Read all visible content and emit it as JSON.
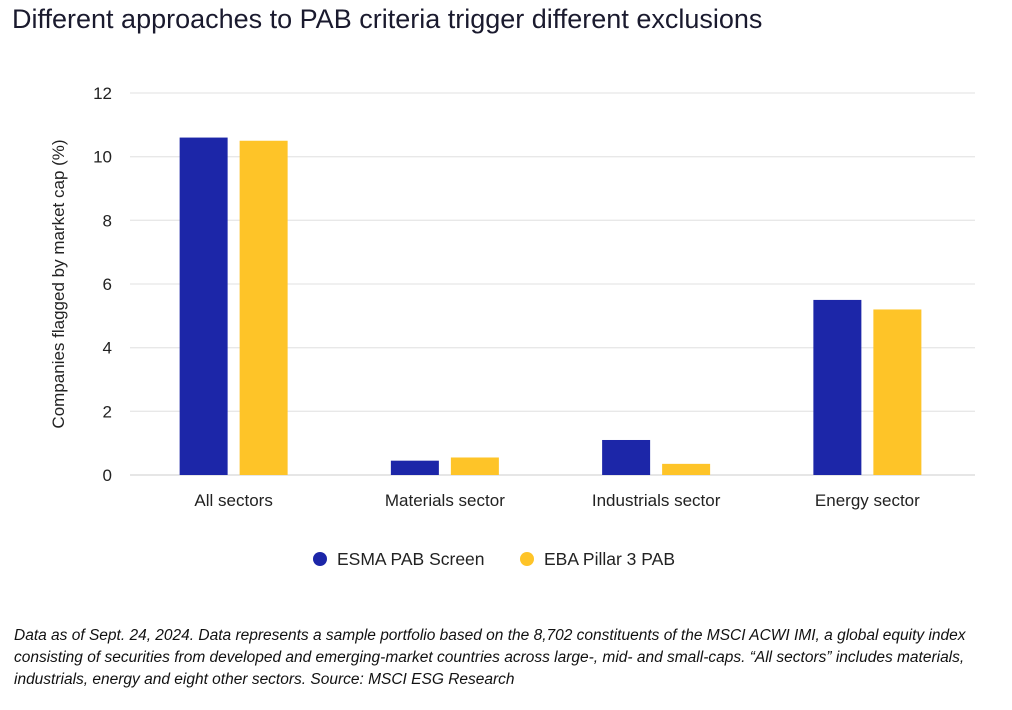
{
  "title": "Different approaches to PAB criteria trigger different exclusions",
  "chart_data": {
    "type": "bar",
    "title": "Different approaches to PAB criteria trigger different exclusions",
    "xlabel": "",
    "ylabel": "Companies flagged by market cap (%)",
    "ylim": [
      0,
      12
    ],
    "yticks": [
      0,
      2,
      4,
      6,
      8,
      10,
      12
    ],
    "grid": true,
    "legend_position": "bottom",
    "categories": [
      "All sectors",
      "Materials sector",
      "Industrials sector",
      "Energy sector"
    ],
    "series": [
      {
        "name": "ESMA PAB Screen",
        "color": "#1c26a8",
        "values": [
          10.6,
          0.45,
          1.1,
          5.5
        ]
      },
      {
        "name": "EBA Pillar 3 PAB",
        "color": "#fec428",
        "values": [
          10.5,
          0.55,
          0.35,
          5.2
        ]
      }
    ]
  },
  "footnote": "Data as of Sept. 24, 2024. Data represents a sample portfolio based on the 8,702 constituents of the MSCI ACWI IMI, a global equity index consisting of securities from developed and emerging-market countries across large-, mid- and small-caps. “All sectors” includes materials, industrials, energy and eight other sectors. Source: MSCI ESG Research"
}
